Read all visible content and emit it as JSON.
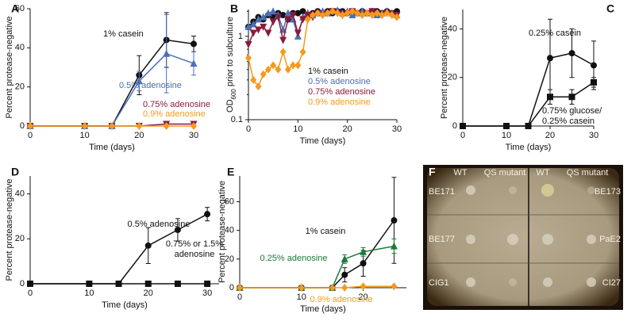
{
  "chart_data": [
    {
      "type": "line",
      "label": "A",
      "xlabel": "Time (days)",
      "ylabel": "Percent protease-negative",
      "x": [
        0,
        10,
        15,
        20,
        25,
        30
      ],
      "xlim": [
        0,
        30
      ],
      "xticks": [
        0,
        10,
        20,
        30
      ],
      "ylim": [
        0,
        60
      ],
      "yticks": [
        0,
        20,
        40,
        60
      ],
      "series": [
        {
          "name": "1% casein",
          "color": "#111111",
          "marker": "circle",
          "values": [
            0,
            0,
            0,
            26,
            44,
            42
          ],
          "errors": [
            0,
            0,
            0,
            10,
            14,
            4
          ]
        },
        {
          "name": "0.5% adenosine",
          "color": "#4a6fb5",
          "marker": "triangle",
          "values": [
            0,
            0,
            0,
            23,
            37,
            32
          ],
          "errors": [
            0,
            0,
            0,
            5,
            20,
            6
          ]
        },
        {
          "name": "0.75% adenosine",
          "color": "#8b1a3a",
          "marker": "triangle-down",
          "values": [
            0,
            0,
            0,
            0,
            1,
            1
          ]
        },
        {
          "name": "0.9% adenosine",
          "color": "#f59a1c",
          "marker": "diamond",
          "values": [
            0,
            0,
            0,
            0,
            0,
            0
          ]
        }
      ]
    },
    {
      "type": "line",
      "label": "B",
      "xlabel": "Time (days)",
      "ylabel": [
        "OD",
        "600",
        " prior to subculture"
      ],
      "log_y": true,
      "x": [
        0,
        1,
        2,
        3,
        4,
        5,
        6,
        7,
        8,
        9,
        10,
        11,
        12,
        13,
        14,
        15,
        16,
        17,
        18,
        19,
        20,
        21,
        22,
        23,
        24,
        25,
        26,
        27,
        28,
        29,
        30
      ],
      "xlim": [
        0,
        30
      ],
      "xticks": [
        0,
        10,
        20,
        30
      ],
      "ylim": [
        0.1,
        2.1
      ],
      "yticks": [
        0.1,
        1
      ],
      "series": [
        {
          "name": "1% casein",
          "color": "#111111",
          "marker": "circle",
          "values": [
            1.3,
            1.5,
            1.7,
            1.6,
            1.8,
            1.7,
            1.9,
            1.8,
            1.6,
            1.9,
            1.9,
            2.0,
            1.8,
            1.9,
            2.0,
            1.9,
            2.0,
            1.9,
            2.0,
            2.0,
            1.9,
            2.0,
            1.9,
            2.0,
            1.9,
            2.0,
            2.0,
            1.9,
            2.0,
            1.9,
            2.0
          ]
        },
        {
          "name": "0.5% adenosine",
          "color": "#4a6fb5",
          "marker": "triangle",
          "values": [
            1.3,
            1.4,
            1.6,
            1.7,
            1.9,
            2.0,
            1.8,
            1.2,
            1.9,
            1.6,
            1.0,
            1.7,
            1.9,
            1.8,
            1.9,
            2.0,
            1.9,
            2.0,
            2.05,
            1.9,
            2.0,
            1.8,
            1.9,
            2.0,
            1.9,
            2.0,
            1.8,
            1.9,
            2.0,
            1.9,
            1.8
          ]
        },
        {
          "name": "0.75% adenosine",
          "color": "#8b1a3a",
          "marker": "triangle-down",
          "values": [
            0.8,
            1.1,
            1.2,
            1.3,
            1.1,
            1.5,
            1.7,
            0.9,
            1.6,
            1.8,
            1.1,
            1.6,
            1.8,
            1.7,
            1.9,
            1.8,
            1.9,
            2.0,
            1.9,
            1.8,
            1.9,
            2.0,
            1.9,
            1.8,
            1.9,
            2.0,
            1.9,
            1.8,
            1.9,
            1.8,
            1.8
          ]
        },
        {
          "name": "0.9% adenosine",
          "color": "#f59a1c",
          "marker": "diamond",
          "values": [
            0.55,
            0.3,
            0.25,
            0.35,
            0.4,
            0.45,
            0.4,
            0.65,
            0.4,
            0.45,
            0.45,
            0.65,
            1.6,
            1.8,
            1.9,
            1.8,
            1.9,
            2.0,
            1.9,
            1.8,
            1.9,
            2.0,
            1.9,
            1.8,
            1.9,
            1.8,
            1.9,
            1.8,
            1.9,
            1.8,
            1.7
          ]
        }
      ]
    },
    {
      "type": "line",
      "label": "C",
      "xlabel": "Time (days)",
      "ylabel": "Percent protease-negative",
      "x": [
        0,
        10,
        15,
        20,
        25,
        30
      ],
      "xlim": [
        0,
        30
      ],
      "xticks": [
        0,
        10,
        20,
        30
      ],
      "ylim": [
        0,
        48
      ],
      "yticks": [
        0,
        20,
        40
      ],
      "series": [
        {
          "name": "0.25% casein",
          "color": "#111111",
          "marker": "circle",
          "values": [
            0,
            0,
            0,
            28,
            30,
            25
          ],
          "errors": [
            0,
            0,
            0,
            16,
            10,
            10
          ]
        },
        {
          "name": [
            "0.75% glucose/",
            "0.25% casein"
          ],
          "color": "#111111",
          "marker": "square",
          "values": [
            0,
            0,
            0,
            12,
            12,
            18
          ],
          "errors": [
            0,
            0,
            0,
            3,
            3,
            2
          ]
        }
      ]
    },
    {
      "type": "line",
      "label": "D",
      "xlabel": "Time (days)",
      "ylabel": "Percent protease-negative",
      "x": [
        0,
        10,
        15,
        20,
        25,
        30
      ],
      "xlim": [
        0,
        32
      ],
      "xticks": [
        0,
        10,
        20,
        30
      ],
      "ylim": [
        0,
        48
      ],
      "yticks": [
        0,
        20,
        40
      ],
      "series": [
        {
          "name": "0.5% adenosine",
          "color": "#111111",
          "marker": "circle",
          "values": [
            0,
            0,
            0,
            17,
            24,
            31
          ],
          "errors": [
            0,
            0,
            0,
            8,
            5,
            3
          ]
        },
        {
          "name": [
            "0.75% or 1.5%",
            "adenosine"
          ],
          "color": "#111111",
          "marker": "square",
          "values": [
            0,
            0,
            0,
            0,
            0,
            0
          ]
        }
      ]
    },
    {
      "type": "line",
      "label": "E",
      "xlabel": "Time (days)",
      "ylabel": "Percent protease-negative",
      "x": [
        0,
        10,
        15,
        17,
        20,
        25
      ],
      "xlim": [
        0,
        27
      ],
      "xticks": [
        0,
        10,
        20
      ],
      "ylim": [
        0,
        78
      ],
      "yticks": [
        0,
        20,
        40,
        60
      ],
      "series": [
        {
          "name": "1% casein",
          "color": "#111111",
          "marker": "circle",
          "values": [
            0,
            0,
            0,
            9,
            17,
            47
          ],
          "errors": [
            0,
            0,
            0,
            5,
            9,
            30
          ]
        },
        {
          "name": "0.25% adenosine",
          "color": "#1a7a3a",
          "marker": "triangle",
          "values": [
            0,
            0,
            0,
            20,
            25,
            29
          ],
          "errors": [
            0,
            0,
            0,
            3,
            3,
            5
          ]
        },
        {
          "name": "0.9% adenosine",
          "color": "#f59a1c",
          "marker": "diamond",
          "values": [
            0,
            0,
            0,
            0,
            1,
            1
          ]
        }
      ]
    }
  ],
  "photo": {
    "label": "F",
    "columns": [
      "WT",
      "QS mutant",
      "WT",
      "QS mutant"
    ],
    "strains": [
      "BE171",
      "BE173",
      "BE177",
      "PaE2",
      "CIG1",
      "CI27"
    ]
  }
}
